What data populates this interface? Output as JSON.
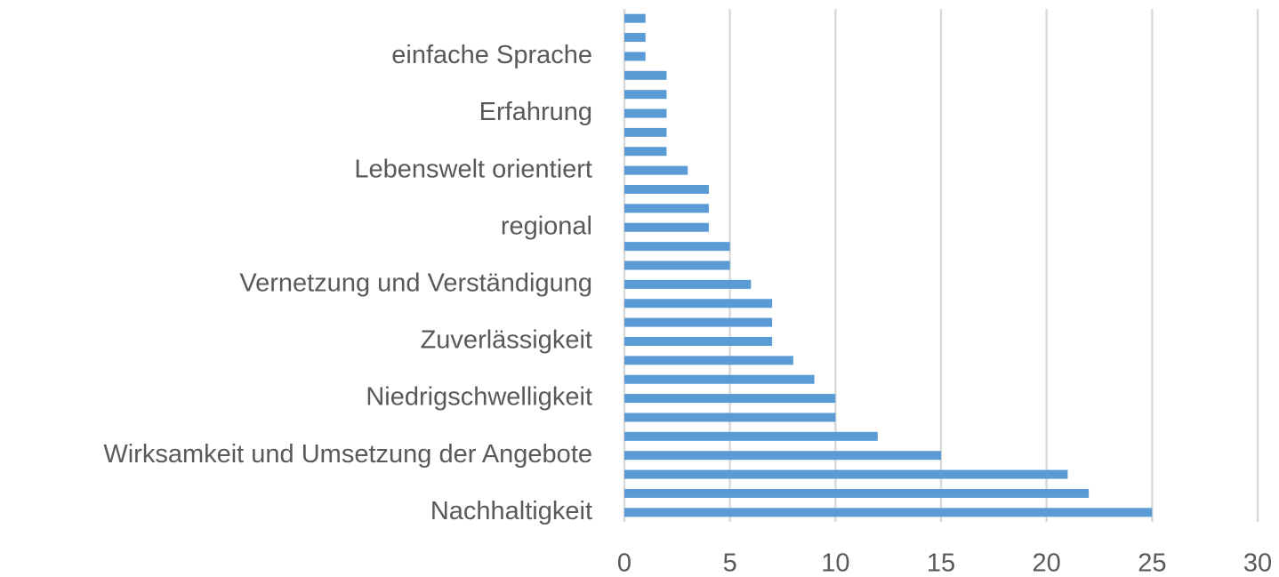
{
  "chart_data": {
    "type": "hbar",
    "categories": [
      "Nachhaltigkeit",
      null,
      null,
      "Wirksamkeit und Umsetzung der Angebote",
      null,
      null,
      "Niedrigschwelligkeit",
      null,
      null,
      "Zuverlässigkeit",
      null,
      null,
      "Vernetzung und Verständigung",
      null,
      null,
      "regional",
      null,
      null,
      "Lebenswelt orientiert",
      null,
      null,
      "Erfahrung",
      null,
      null,
      "einfache Sprache",
      null,
      null
    ],
    "values": [
      25,
      22,
      21,
      15,
      12,
      10,
      10,
      9,
      8,
      7,
      7,
      7,
      6,
      5,
      5,
      4,
      4,
      4,
      3,
      2,
      2,
      2,
      2,
      2,
      1,
      1,
      1
    ],
    "color": "#5b9bd5",
    "xlim": [
      0,
      30
    ],
    "xticks": [
      0,
      5,
      10,
      15,
      20,
      25,
      30
    ],
    "grid": true
  }
}
